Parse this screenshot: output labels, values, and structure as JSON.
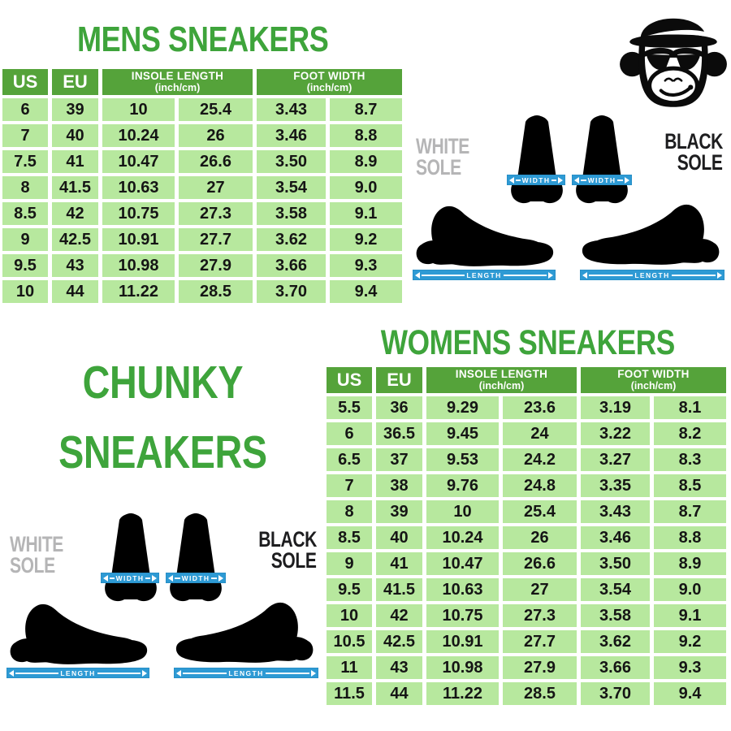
{
  "colors": {
    "title_green": "#3EA43B",
    "header_green": "#55A33A",
    "cell_green": "#B7E89E",
    "band_blue": "#2E9AD4",
    "white_sole_gray": "#B5B5B6",
    "black_sole_black": "#1D1D1F"
  },
  "mens": {
    "title": "MENS SNEAKERS",
    "header": {
      "us": "US",
      "eu": "EU",
      "insole_length": "INSOLE LENGTH",
      "insole_unit": "(inch/cm)",
      "foot_width": "FOOT WIDTH",
      "foot_width_unit": "(inch/cm)"
    },
    "rows": [
      [
        "6",
        "39",
        "10",
        "25.4",
        "3.43",
        "8.7"
      ],
      [
        "7",
        "40",
        "10.24",
        "26",
        "3.46",
        "8.8"
      ],
      [
        "7.5",
        "41",
        "10.47",
        "26.6",
        "3.50",
        "8.9"
      ],
      [
        "8",
        "41.5",
        "10.63",
        "27",
        "3.54",
        "9.0"
      ],
      [
        "8.5",
        "42",
        "10.75",
        "27.3",
        "3.58",
        "9.1"
      ],
      [
        "9",
        "42.5",
        "10.91",
        "27.7",
        "3.62",
        "9.2"
      ],
      [
        "9.5",
        "43",
        "10.98",
        "27.9",
        "3.66",
        "9.3"
      ],
      [
        "10",
        "44",
        "11.22",
        "28.5",
        "3.70",
        "9.4"
      ]
    ]
  },
  "womens": {
    "title": "WOMENS SNEAKERS",
    "header": {
      "us": "US",
      "eu": "EU",
      "insole_length": "INSOLE LENGTH",
      "insole_unit": "(inch/cm)",
      "foot_width": "FOOT WIDTH",
      "foot_width_unit": "(inch/cm)"
    },
    "rows": [
      [
        "5.5",
        "36",
        "9.29",
        "23.6",
        "3.19",
        "8.1"
      ],
      [
        "6",
        "36.5",
        "9.45",
        "24",
        "3.22",
        "8.2"
      ],
      [
        "6.5",
        "37",
        "9.53",
        "24.2",
        "3.27",
        "8.3"
      ],
      [
        "7",
        "38",
        "9.76",
        "24.8",
        "3.35",
        "8.5"
      ],
      [
        "8",
        "39",
        "10",
        "25.4",
        "3.43",
        "8.7"
      ],
      [
        "8.5",
        "40",
        "10.24",
        "26",
        "3.46",
        "8.8"
      ],
      [
        "9",
        "41",
        "10.47",
        "26.6",
        "3.50",
        "8.9"
      ],
      [
        "9.5",
        "41.5",
        "10.63",
        "27",
        "3.54",
        "9.0"
      ],
      [
        "10",
        "42",
        "10.75",
        "27.3",
        "3.58",
        "9.1"
      ],
      [
        "10.5",
        "42.5",
        "10.91",
        "27.7",
        "3.62",
        "9.2"
      ],
      [
        "11",
        "43",
        "10.98",
        "27.9",
        "3.66",
        "9.3"
      ],
      [
        "11.5",
        "44",
        "11.22",
        "28.5",
        "3.70",
        "9.4"
      ]
    ]
  },
  "chunky": {
    "line1": "CHUNKY",
    "line2": "SNEAKERS"
  },
  "diagram": {
    "white_sole_line1": "WHITE",
    "white_sole_line2": "SOLE",
    "black_sole_line1": "BLACK",
    "black_sole_line2": "SOLE",
    "width_label": "WIDTH",
    "length_label": "LENGTH"
  },
  "logo": {
    "icon": "monkey-with-bowler-hat-and-sunglasses"
  }
}
